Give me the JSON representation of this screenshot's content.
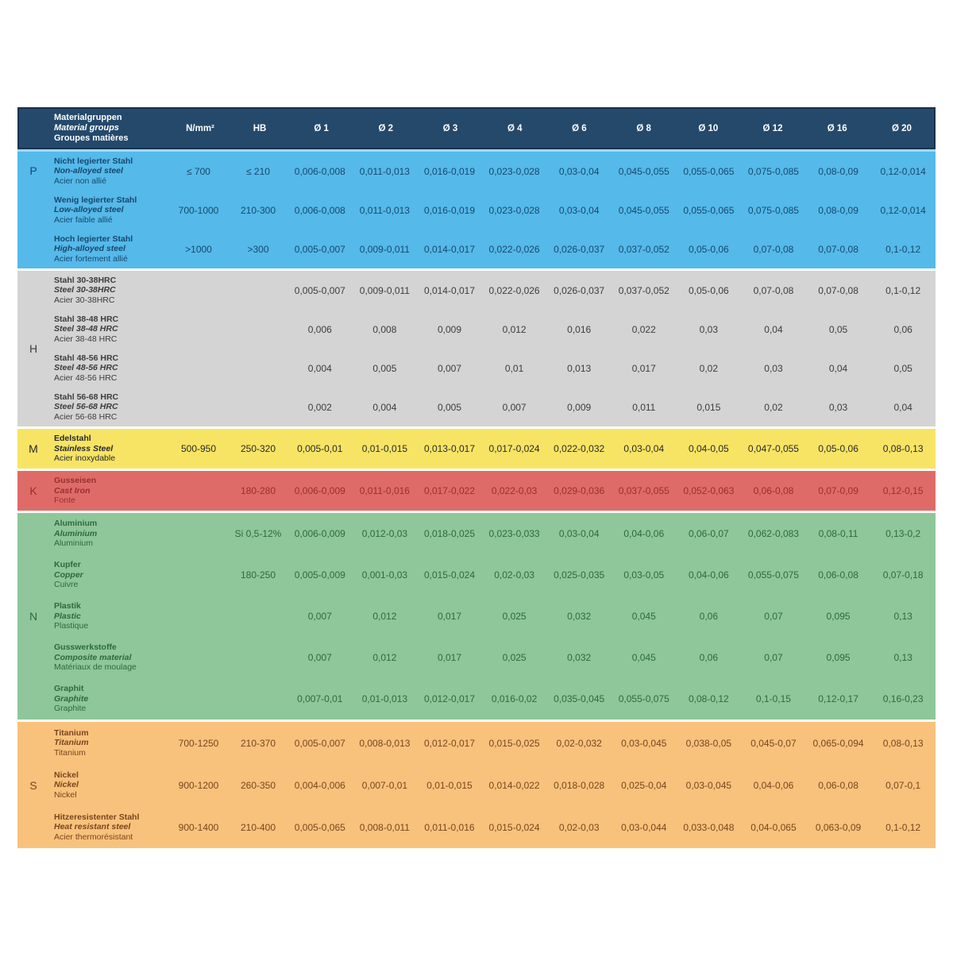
{
  "colors": {
    "header_bg": "#24496b",
    "header_border": "#18334e",
    "header_text": "#ffffff",
    "header_gap": "#9edaf4",
    "page_bg": "#ffffff",
    "section_gap": "#ffffff"
  },
  "header": {
    "group_label": {
      "de": "Materialgruppen",
      "en": "Material groups",
      "fr": "Groupes matières"
    },
    "columns": [
      "N/mm²",
      "HB",
      "Ø 1",
      "Ø 2",
      "Ø 3",
      "Ø 4",
      "Ø 6",
      "Ø 8",
      "Ø 10",
      "Ø 12",
      "Ø 16",
      "Ø 20"
    ]
  },
  "sections": [
    {
      "key": "P",
      "bg": "#55b9e9",
      "text": "#16486e",
      "rows": [
        {
          "labels": [
            "Nicht legierter Stahl",
            "Non-alloyed steel",
            "Acier non allié"
          ],
          "nmm": "≤ 700",
          "hb": "≤ 210",
          "values": [
            "0,006-0,008",
            "0,011-0,013",
            "0,016-0,019",
            "0,023-0,028",
            "0,03-0,04",
            "0,045-0,055",
            "0,055-0,065",
            "0,075-0,085",
            "0,08-0,09",
            "0,12-0,014"
          ]
        },
        {
          "labels": [
            "Wenig legierter Stahl",
            "Low-alloyed steel",
            "Acier faible allié"
          ],
          "nmm": "700-1000",
          "hb": "210-300",
          "values": [
            "0,006-0,008",
            "0,011-0,013",
            "0,016-0,019",
            "0,023-0,028",
            "0,03-0,04",
            "0,045-0,055",
            "0,055-0,065",
            "0,075-0,085",
            "0,08-0,09",
            "0,12-0,014"
          ]
        },
        {
          "labels": [
            "Hoch legierter Stahl",
            "High-alloyed steel",
            "Acier fortement allié"
          ],
          "nmm": ">1000",
          "hb": ">300",
          "values": [
            "0,005-0,007",
            "0,009-0,011",
            "0,014-0,017",
            "0,022-0,026",
            "0,026-0,037",
            "0,037-0,052",
            "0,05-0,06",
            "0,07-0,08",
            "0,07-0,08",
            "0,1-0,12"
          ]
        }
      ]
    },
    {
      "key": "H",
      "bg": "#d4d4d4",
      "text": "#3c3c3c",
      "rows": [
        {
          "labels": [
            "Stahl 30-38HRC",
            "Steel 30-38HRC",
            "Acier 30-38HRC"
          ],
          "nmm": "",
          "hb": "",
          "values": [
            "0,005-0,007",
            "0,009-0,011",
            "0,014-0,017",
            "0,022-0,026",
            "0,026-0,037",
            "0,037-0,052",
            "0,05-0,06",
            "0,07-0,08",
            "0,07-0,08",
            "0,1-0,12"
          ]
        },
        {
          "labels": [
            "Stahl 38-48 HRC",
            "Steel 38-48 HRC",
            "Acier 38-48 HRC"
          ],
          "nmm": "",
          "hb": "",
          "values": [
            "0,006",
            "0,008",
            "0,009",
            "0,012",
            "0,016",
            "0,022",
            "0,03",
            "0,04",
            "0,05",
            "0,06"
          ]
        },
        {
          "labels": [
            "Stahl 48-56 HRC",
            "Steel 48-56 HRC",
            "Acier 48-56 HRC"
          ],
          "nmm": "",
          "hb": "",
          "values": [
            "0,004",
            "0,005",
            "0,007",
            "0,01",
            "0,013",
            "0,017",
            "0,02",
            "0,03",
            "0,04",
            "0,05"
          ]
        },
        {
          "labels": [
            "Stahl 56-68 HRC",
            "Steel 56-68 HRC",
            "Acier 56-68 HRC"
          ],
          "nmm": "",
          "hb": "",
          "values": [
            "0,002",
            "0,004",
            "0,005",
            "0,007",
            "0,009",
            "0,011",
            "0,015",
            "0,02",
            "0,03",
            "0,04"
          ]
        }
      ]
    },
    {
      "key": "M",
      "bg": "#f8e464",
      "text": "#23292e",
      "rows": [
        {
          "labels": [
            "Edelstahl",
            "Stainless Steel",
            "Acier inoxydable"
          ],
          "nmm": "500-950",
          "hb": "250-320",
          "values": [
            "0,005-0,01",
            "0,01-0,015",
            "0,013-0,017",
            "0,017-0,024",
            "0,022-0,032",
            "0,03-0,04",
            "0,04-0,05",
            "0,047-0,055",
            "0,05-0,06",
            "0,08-0,13"
          ]
        }
      ]
    },
    {
      "key": "K",
      "bg": "#df6b68",
      "text": "#96302d",
      "rows": [
        {
          "labels": [
            "Gusseisen",
            "Cast Iron",
            "Fonte"
          ],
          "nmm": "",
          "hb": "180-280",
          "values": [
            "0,006-0,009",
            "0,011-0,016",
            "0,017-0,022",
            "0,022-0,03",
            "0,029-0,036",
            "0,037-0,055",
            "0,052-0,063",
            "0,06-0,08",
            "0,07-0,09",
            "0,12-0,15"
          ]
        }
      ]
    },
    {
      "key": "N",
      "bg": "#8fc69a",
      "text": "#2d6b3a",
      "rows": [
        {
          "labels": [
            "Aluminium",
            "Aluminium",
            "Aluminium"
          ],
          "nmm": "",
          "hb": "Si 0,5-12%",
          "values": [
            "0,006-0,009",
            "0,012-0,03",
            "0,018-0,025",
            "0,023-0,033",
            "0,03-0,04",
            "0,04-0,06",
            "0,06-0,07",
            "0,062-0,083",
            "0,08-0,11",
            "0,13-0,2"
          ]
        },
        {
          "labels": [
            "Kupfer",
            "Copper",
            "Cuivre"
          ],
          "nmm": "",
          "hb": "180-250",
          "values": [
            "0,005-0,009",
            "0,001-0,03",
            "0,015-0,024",
            "0,02-0,03",
            "0,025-0,035",
            "0,03-0,05",
            "0,04-0,06",
            "0,055-0,075",
            "0,06-0,08",
            "0,07-0,18"
          ]
        },
        {
          "labels": [
            "Plastik",
            "Plastic",
            "Plastique"
          ],
          "nmm": "",
          "hb": "",
          "values": [
            "0,007",
            "0,012",
            "0,017",
            "0,025",
            "0,032",
            "0,045",
            "0,06",
            "0,07",
            "0,095",
            "0,13"
          ]
        },
        {
          "labels": [
            "Gusswerkstoffe",
            "Composite material",
            "Matériaux de moulage"
          ],
          "nmm": "",
          "hb": "",
          "values": [
            "0,007",
            "0,012",
            "0,017",
            "0,025",
            "0,032",
            "0,045",
            "0,06",
            "0,07",
            "0,095",
            "0,13"
          ]
        },
        {
          "labels": [
            "Graphit",
            "Graphite",
            "Graphite"
          ],
          "nmm": "",
          "hb": "",
          "values": [
            "0,007-0,01",
            "0,01-0,013",
            "0,012-0,017",
            "0,016-0,02",
            "0,035-0,045",
            "0,055-0,075",
            "0,08-0,12",
            "0,1-0,15",
            "0,12-0,17",
            "0,16-0,23"
          ]
        }
      ]
    },
    {
      "key": "S",
      "bg": "#f8c27c",
      "text": "#7a4420",
      "rows": [
        {
          "labels": [
            "Titanium",
            "Titanium",
            "Titanium"
          ],
          "nmm": "700-1250",
          "hb": "210-370",
          "values": [
            "0,005-0,007",
            "0,008-0,013",
            "0,012-0,017",
            "0,015-0,025",
            "0,02-0,032",
            "0,03-0,045",
            "0,038-0,05",
            "0,045-0,07",
            "0,065-0,094",
            "0,08-0,13"
          ]
        },
        {
          "labels": [
            "Nickel",
            "Nickel",
            "Nickel"
          ],
          "nmm": "900-1200",
          "hb": "260-350",
          "values": [
            "0,004-0,006",
            "0,007-0,01",
            "0,01-0,015",
            "0,014-0,022",
            "0,018-0,028",
            "0,025-0,04",
            "0,03-0,045",
            "0,04-0,06",
            "0,06-0,08",
            "0,07-0,1"
          ]
        },
        {
          "labels": [
            "Hitzeresistenter Stahl",
            "Heat resistant steel",
            "Acier thermorésistant"
          ],
          "nmm": "900-1400",
          "hb": "210-400",
          "values": [
            "0,005-0,065",
            "0,008-0,011",
            "0,011-0,016",
            "0,015-0,024",
            "0,02-0,03",
            "0,03-0,044",
            "0,033-0,048",
            "0,04-0,065",
            "0,063-0,09",
            "0,1-0,12"
          ]
        }
      ]
    }
  ]
}
